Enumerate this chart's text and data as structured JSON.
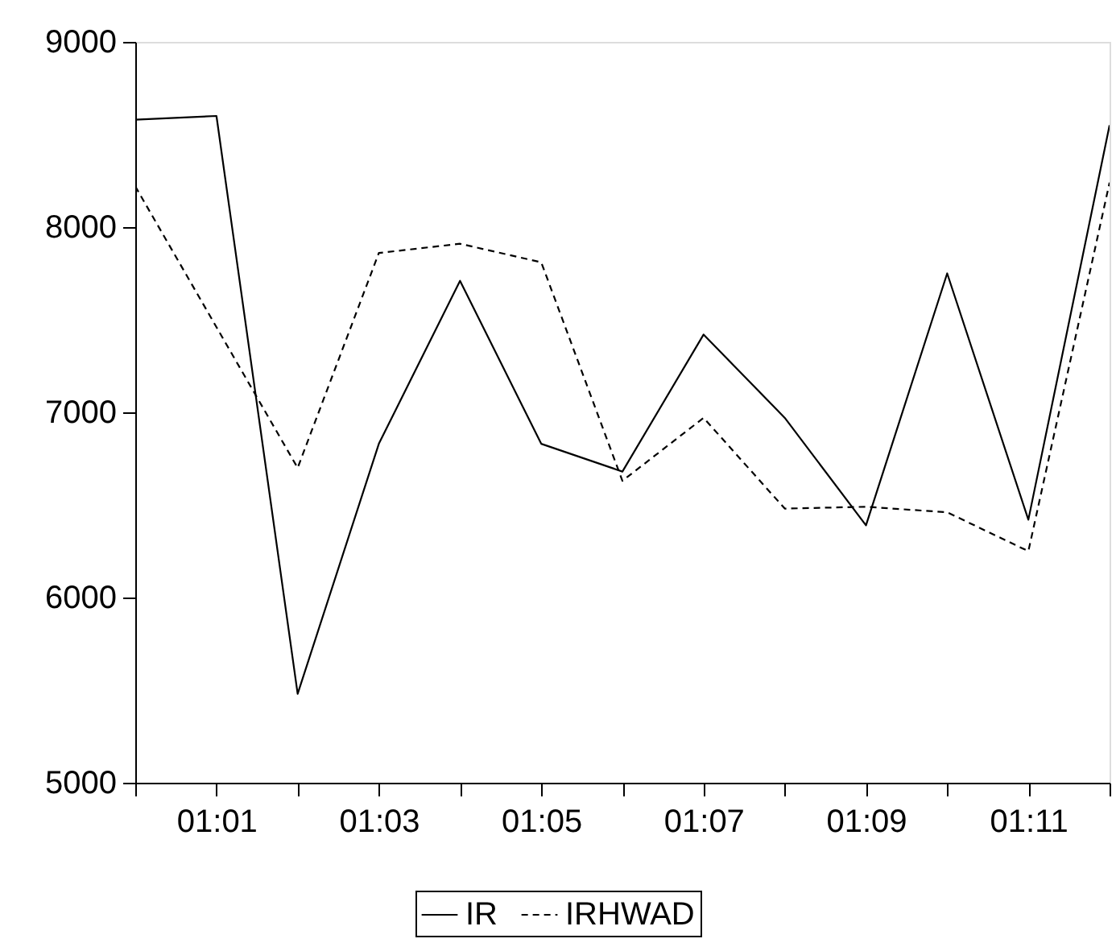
{
  "chart_data": {
    "type": "line",
    "categories": [
      null,
      "01:01",
      null,
      "01:03",
      null,
      "01:05",
      null,
      "01:07",
      null,
      "01:09",
      null,
      "01:11",
      null
    ],
    "series": [
      {
        "name": "IR",
        "color": "#000000",
        "line_style": "solid",
        "values": [
          8580,
          8600,
          5480,
          6830,
          7710,
          6830,
          6680,
          7420,
          6970,
          6390,
          7750,
          6420,
          8550
        ]
      },
      {
        "name": "IRHWAD",
        "color": "#000000",
        "line_style": "dashed",
        "values": [
          8220,
          7460,
          6700,
          7860,
          7910,
          7810,
          6630,
          6970,
          6480,
          6490,
          6460,
          6250,
          8240
        ]
      }
    ],
    "ylim": [
      5000,
      9000
    ],
    "yticks": [
      5000,
      6000,
      7000,
      8000,
      9000
    ],
    "grid": false,
    "legend": "bottom",
    "marker": "none"
  }
}
